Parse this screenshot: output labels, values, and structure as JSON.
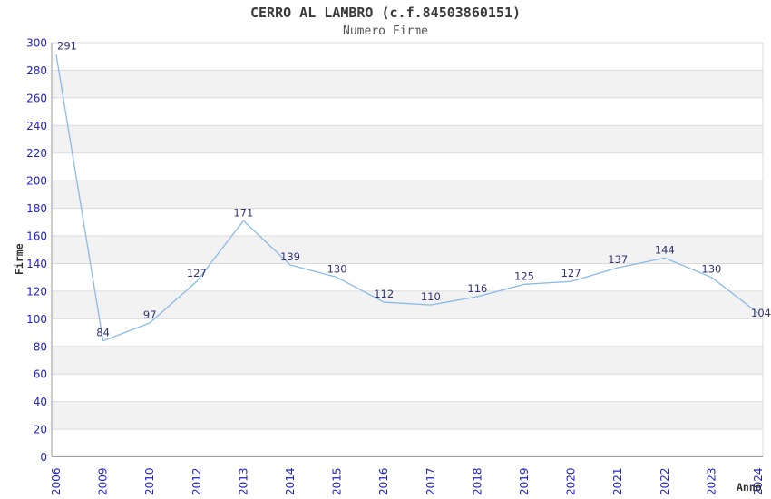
{
  "page": {
    "background": "#ffffff"
  },
  "chart_data": {
    "type": "line",
    "title": "CERRO AL LAMBRO (c.f.84503860151)",
    "subtitle": "Numero Firme",
    "xlabel": "Anno",
    "ylabel": "Firme",
    "categories": [
      "2006",
      "2009",
      "2010",
      "2012",
      "2013",
      "2014",
      "2015",
      "2016",
      "2017",
      "2018",
      "2019",
      "2020",
      "2021",
      "2022",
      "2023",
      "2024"
    ],
    "values": [
      291,
      84,
      97,
      127,
      171,
      139,
      130,
      112,
      110,
      116,
      125,
      127,
      137,
      144,
      130,
      104
    ],
    "ylim": [
      0,
      300
    ],
    "ytick_step": 20,
    "grid": "horizontal-alternating-bands",
    "legend": "none",
    "colors": {
      "line": "#89BAE8",
      "tick_label": "#2222CC",
      "data_label": "#333377",
      "band": "#F2F2F2",
      "gridline": "#DBDBDB",
      "axis": "#999999",
      "title": "#3A3A3A",
      "subtitle": "#555555"
    }
  }
}
